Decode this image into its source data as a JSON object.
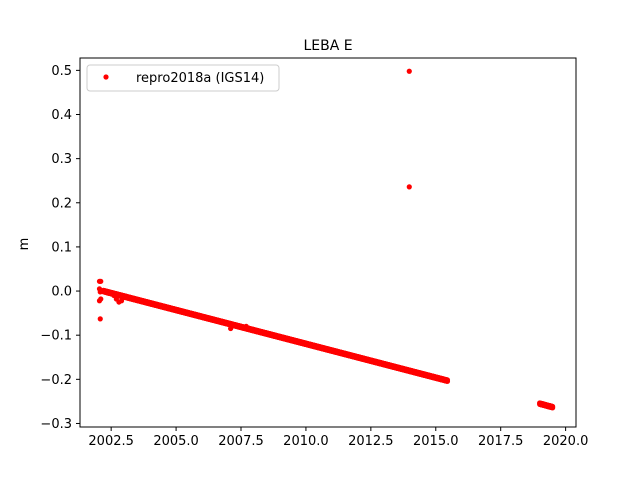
{
  "chart_data": {
    "type": "scatter",
    "title": "LEBA E",
    "xlabel": "",
    "ylabel": "m",
    "xlim": [
      2001.3,
      2020.4
    ],
    "ylim": [
      -0.308,
      0.528
    ],
    "x_ticks": [
      2002.5,
      2005.0,
      2007.5,
      2010.0,
      2012.5,
      2015.0,
      2017.5,
      2020.0
    ],
    "x_tick_labels": [
      "2002.5",
      "2005.0",
      "2007.5",
      "2010.0",
      "2012.5",
      "2015.0",
      "2017.5",
      "2020.0"
    ],
    "y_ticks": [
      -0.3,
      -0.2,
      -0.1,
      0.0,
      0.1,
      0.2,
      0.3,
      0.4,
      0.5
    ],
    "y_tick_labels": [
      "−0.3",
      "−0.2",
      "−0.1",
      "0.0",
      "0.1",
      "0.2",
      "0.3",
      "0.4",
      "0.5"
    ],
    "grid": false,
    "legend_position": "top-left",
    "color": "#ff0000",
    "series": [
      {
        "name": "repro2018a (IGS14)",
        "segments": [
          {
            "x_start": 2002.2,
            "x_end": 2015.45,
            "y_start": 0.0,
            "y_end": -0.203
          },
          {
            "x_start": 2019.0,
            "x_end": 2019.5,
            "y_start": -0.255,
            "y_end": -0.263
          }
        ],
        "points": [
          [
            2002.05,
            0.022
          ],
          [
            2002.1,
            0.022
          ],
          [
            2002.05,
            0.005
          ],
          [
            2002.08,
            -0.002
          ],
          [
            2002.1,
            -0.018
          ],
          [
            2002.05,
            -0.022
          ],
          [
            2002.08,
            -0.063
          ],
          [
            2002.7,
            -0.018
          ],
          [
            2002.8,
            -0.025
          ],
          [
            2002.9,
            -0.022
          ],
          [
            2003.0,
            -0.012
          ],
          [
            2002.4,
            -0.005
          ],
          [
            2002.6,
            -0.01
          ],
          [
            2007.1,
            -0.085
          ],
          [
            2007.7,
            -0.08
          ],
          [
            2013.98,
            0.498
          ],
          [
            2013.98,
            0.236
          ]
        ]
      }
    ]
  }
}
